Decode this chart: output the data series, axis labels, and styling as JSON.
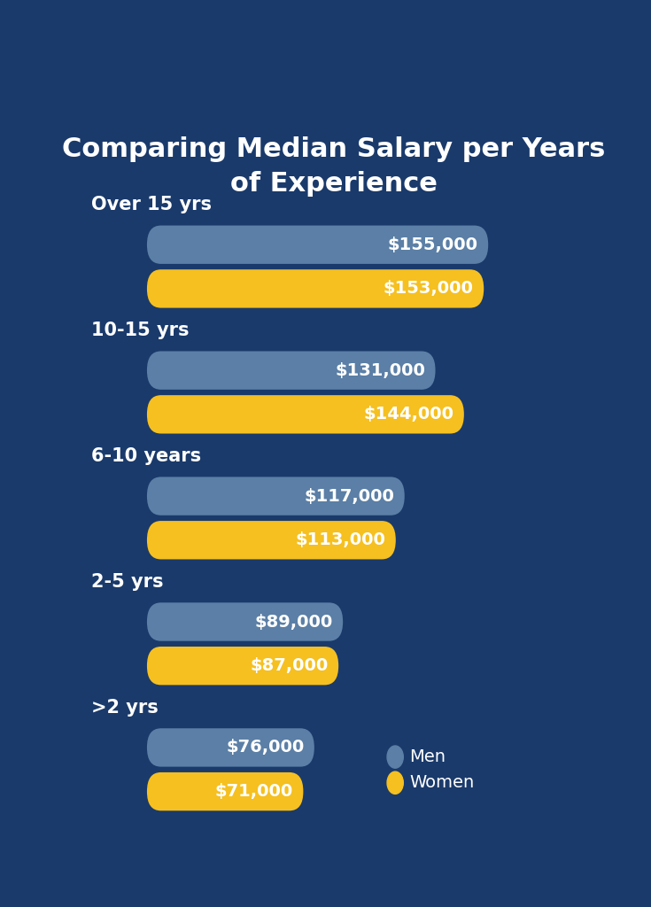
{
  "title": "Comparing Median Salary per Years\nof Experience",
  "background_color": "#1a3a6b",
  "bar_color_men": "#5b7fa6",
  "bar_color_women": "#f5c020",
  "text_color": "#ffffff",
  "categories": [
    "Over 15 yrs",
    "10-15 yrs",
    "6-10 years",
    "2-5 yrs",
    ">2 yrs"
  ],
  "men_values": [
    155000,
    131000,
    117000,
    89000,
    76000
  ],
  "women_values": [
    153000,
    144000,
    113000,
    87000,
    71000
  ],
  "men_labels": [
    "$155,000",
    "$131,000",
    "$117,000",
    "$89,000",
    "$76,000"
  ],
  "women_labels": [
    "$153,000",
    "$144,000",
    "$113,000",
    "$87,000",
    "$71,000"
  ],
  "max_value": 165000,
  "title_fontsize": 22,
  "label_fontsize": 14,
  "category_fontsize": 15,
  "legend_fontsize": 14
}
